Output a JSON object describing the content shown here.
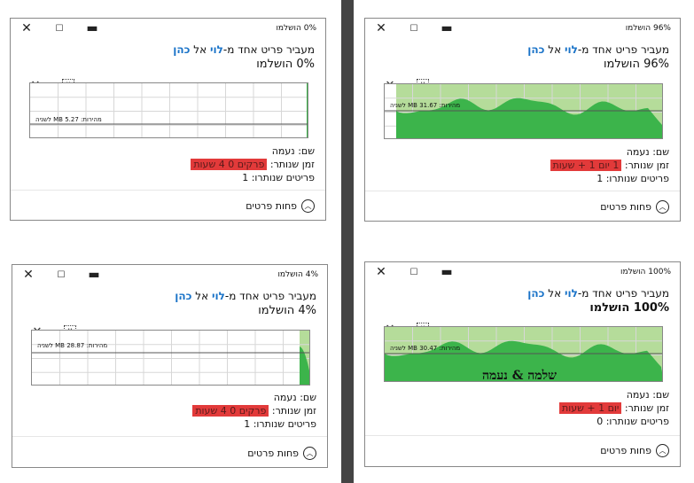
{
  "dialogs": [
    {
      "title": "0% הושלמו",
      "line1": {
        "prefix": "מעביר פריט אחד מ-",
        "from": "לוי",
        "to_word": "אל",
        "to": "כהן"
      },
      "status": "0% הושלמו",
      "progress_percent": 0,
      "speed": "מהירות: 5.27 MB לשניה",
      "name_label": "שם: נעמה",
      "time_label": "זמן שנותר:",
      "time_value": "פרקים 0 4 שעות",
      "items_label": "פריטים שנותרו: 1",
      "less_details": "פחות פרטים"
    },
    {
      "title": "96% הושלמו",
      "line1": {
        "prefix": "מעביר פריט אחד מ-",
        "from": "לוי",
        "to_word": "אל",
        "to": "כהן"
      },
      "status": "96% הושלמו",
      "progress_percent": 96,
      "speed": "מהירות: 31.67 MB לשניה",
      "name_label": "שם: נעמה",
      "time_label": "זמן שנותר:",
      "time_value": "1 יום 1 + שעות",
      "items_label": "פריטים שנותרו: 1",
      "less_details": "פחות פרטים"
    },
    {
      "title": "4% הושלמו",
      "line1": {
        "prefix": "מעביר פריט אחד מ-",
        "from": "לוי",
        "to_word": "אל",
        "to": "כהן"
      },
      "status": "4% הושלמו",
      "progress_percent": 4,
      "speed": "מהירות: 28.87 MB לשניה",
      "name_label": "שם: נעמה",
      "time_label": "זמן שנותר:",
      "time_value": "פרקים 0 4 שעות",
      "items_label": "פריטים שנותרו: 1",
      "less_details": "פחות פרטים"
    },
    {
      "title": "100% הושלמו",
      "line1": {
        "prefix": "מעביר פריט אחד מ-",
        "from": "לוי",
        "to_word": "אל",
        "to": "כהן"
      },
      "status": "100% הושלמו",
      "progress_percent": 100,
      "speed": "מהירות: 30.47 MB לשניה",
      "names_overlay": "שלמה & נעמה",
      "name_label": "שם: נעמה",
      "time_label": "זמן שנותר:",
      "time_value": "יום 1 + שעות",
      "items_label": "פריטים שנותרו: 0",
      "less_details": "פחות פרטים"
    }
  ],
  "colors": {
    "progress_fill": "#b5dc9a",
    "speed_area": "#3cb44b",
    "time_highlight": "#e23a3a",
    "link_blue": "#1a73c8",
    "divider": "#444444"
  },
  "icons": {
    "close": "×",
    "minimize": "—",
    "maximize": "☐",
    "pause": "⏸",
    "chevron_up": "^"
  }
}
